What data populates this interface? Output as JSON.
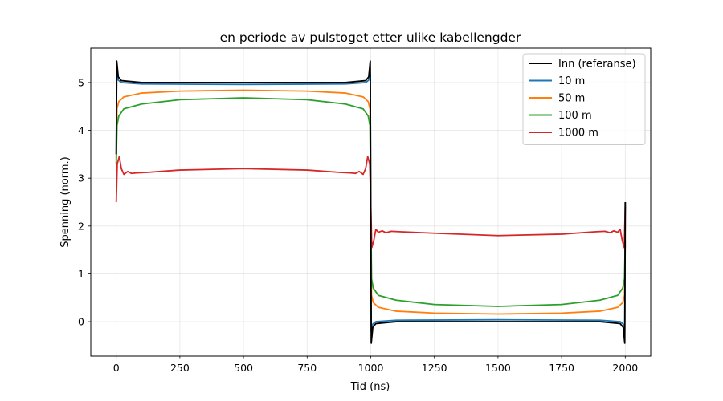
{
  "chart_data": {
    "type": "line",
    "title": "en periode av pulstoget etter ulike kabellengder",
    "xlabel": "Tid (ns)",
    "ylabel": "Spenning (norm.)",
    "xlim": [
      -100,
      2100
    ],
    "ylim": [
      -0.72,
      5.72
    ],
    "xticks": [
      0,
      250,
      500,
      750,
      1000,
      1250,
      1500,
      1750,
      2000
    ],
    "yticks": [
      0,
      1,
      2,
      3,
      4,
      5
    ],
    "grid": true,
    "legend_position": "top-right",
    "series": [
      {
        "name": "Inn (referanse)",
        "color": "#000000",
        "x": [
          0,
          2,
          8,
          20,
          100,
          500,
          900,
          980,
          992,
          998,
          1000,
          1002,
          1008,
          1020,
          1100,
          1500,
          1900,
          1980,
          1992,
          1998,
          2000
        ],
        "values": [
          3.5,
          5.45,
          5.12,
          5.04,
          5.0,
          5.0,
          5.0,
          5.04,
          5.12,
          5.45,
          2.5,
          -0.45,
          -0.12,
          -0.04,
          0.0,
          0.0,
          0.0,
          -0.04,
          -0.12,
          -0.45,
          2.5
        ]
      },
      {
        "name": "10 m",
        "color": "#1f77b4",
        "x": [
          0,
          2,
          8,
          20,
          100,
          500,
          900,
          980,
          992,
          998,
          1000,
          1002,
          1008,
          1020,
          1100,
          1500,
          1900,
          1980,
          1992,
          1998,
          2000
        ],
        "values": [
          3.5,
          5.2,
          5.05,
          5.0,
          4.97,
          4.96,
          4.97,
          5.0,
          5.05,
          5.2,
          2.5,
          -0.2,
          -0.05,
          0.0,
          0.03,
          0.04,
          0.03,
          0.0,
          -0.05,
          -0.2,
          2.5
        ]
      },
      {
        "name": "50 m",
        "color": "#ff7f0e",
        "x": [
          0,
          3,
          10,
          30,
          100,
          250,
          500,
          750,
          900,
          970,
          990,
          997,
          1000,
          1003,
          1010,
          1030,
          1100,
          1250,
          1500,
          1750,
          1900,
          1970,
          1990,
          1997,
          2000
        ],
        "values": [
          3.4,
          4.45,
          4.6,
          4.7,
          4.78,
          4.82,
          4.84,
          4.82,
          4.78,
          4.7,
          4.6,
          4.45,
          2.5,
          0.55,
          0.4,
          0.3,
          0.22,
          0.18,
          0.16,
          0.18,
          0.22,
          0.3,
          0.4,
          0.55,
          1.6
        ]
      },
      {
        "name": "100 m",
        "color": "#2ca02c",
        "x": [
          0,
          3,
          10,
          30,
          100,
          250,
          500,
          750,
          900,
          970,
          990,
          997,
          1000,
          1003,
          1010,
          1030,
          1100,
          1250,
          1500,
          1750,
          1900,
          1970,
          1990,
          1997,
          2000
        ],
        "values": [
          3.3,
          4.1,
          4.3,
          4.45,
          4.55,
          4.64,
          4.68,
          4.64,
          4.55,
          4.45,
          4.3,
          4.1,
          2.5,
          0.9,
          0.7,
          0.55,
          0.45,
          0.36,
          0.32,
          0.36,
          0.45,
          0.55,
          0.7,
          0.9,
          1.7
        ]
      },
      {
        "name": "1000 m",
        "color": "#d62728",
        "x": [
          0,
          4,
          12,
          20,
          30,
          45,
          60,
          80,
          120,
          250,
          500,
          750,
          880,
          920,
          940,
          955,
          970,
          980,
          988,
          996,
          1000,
          1004,
          1012,
          1020,
          1030,
          1045,
          1060,
          1080,
          1120,
          1250,
          1500,
          1750,
          1880,
          1920,
          1940,
          1955,
          1970,
          1980,
          1988,
          1996,
          2000
        ],
        "values": [
          2.5,
          3.3,
          3.45,
          3.2,
          3.08,
          3.14,
          3.1,
          3.11,
          3.12,
          3.17,
          3.2,
          3.17,
          3.12,
          3.11,
          3.1,
          3.14,
          3.08,
          3.2,
          3.45,
          3.3,
          2.5,
          1.55,
          1.7,
          1.93,
          1.87,
          1.9,
          1.86,
          1.89,
          1.88,
          1.85,
          1.8,
          1.83,
          1.88,
          1.89,
          1.86,
          1.9,
          1.87,
          1.93,
          1.7,
          1.55,
          2.4
        ]
      }
    ]
  }
}
